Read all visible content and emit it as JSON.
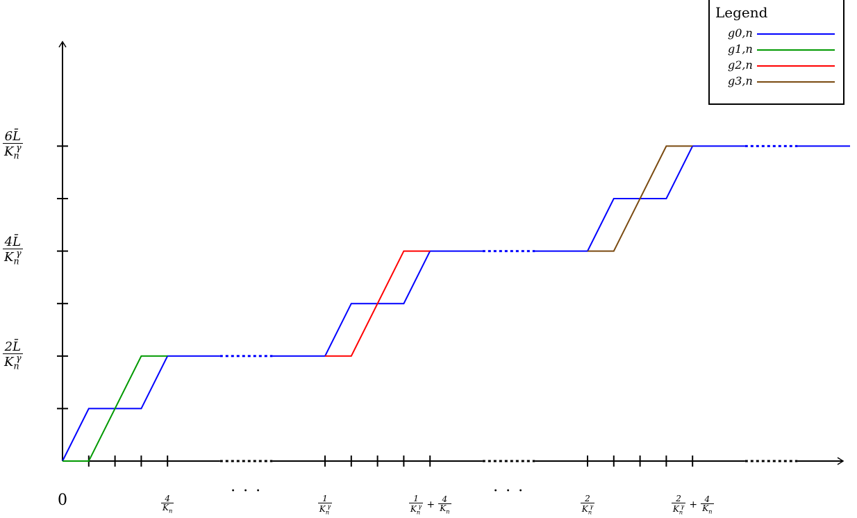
{
  "chart_data": {
    "type": "line",
    "title": "",
    "xlabel": "",
    "ylabel": "",
    "x_unit_note": "x in units of 1/K_n; 1/K_n^γ placed at x=10",
    "xlim": [
      0,
      30
    ],
    "ylim": [
      0,
      6
    ],
    "grid": false,
    "legend": {
      "title": "Legend",
      "placement": "top-right",
      "entries": [
        {
          "label": "g0,n",
          "color": "#0000ff"
        },
        {
          "label": "g1,n",
          "color": "#009900"
        },
        {
          "label": "g2,n",
          "color": "#ff0000"
        },
        {
          "label": "g3,n",
          "color": "#7a4a10"
        }
      ]
    },
    "y_ticks": [
      {
        "value": 1,
        "label": null
      },
      {
        "value": 2,
        "label": {
          "num": "2L̄",
          "den": "K_n^γ"
        }
      },
      {
        "value": 3,
        "label": null
      },
      {
        "value": 4,
        "label": {
          "num": "4L̄",
          "den": "K_n^γ"
        }
      },
      {
        "value": 5,
        "label": null
      },
      {
        "value": 6,
        "label": {
          "num": "6L̄",
          "den": "K_n^γ"
        }
      }
    ],
    "x_ticks": [
      1,
      2,
      3,
      4,
      10,
      11,
      12,
      13,
      14,
      20,
      21,
      22,
      23,
      24
    ],
    "x_labels": [
      {
        "x": 0,
        "kind": "plain",
        "text": "0"
      },
      {
        "x": 4,
        "kind": "frac",
        "num": "4",
        "den": "K_n"
      },
      {
        "x": 7,
        "kind": "dots",
        "text": "· · ·"
      },
      {
        "x": 10,
        "kind": "frac",
        "num": "1",
        "den": "K_n^γ"
      },
      {
        "x": 14,
        "kind": "sum",
        "a_num": "1",
        "a_den": "K_n^γ",
        "b_num": "4",
        "b_den": "K_n"
      },
      {
        "x": 17,
        "kind": "dots",
        "text": "· · ·"
      },
      {
        "x": 20,
        "kind": "frac",
        "num": "2",
        "den": "K_n^γ"
      },
      {
        "x": 24,
        "kind": "sum",
        "a_num": "2",
        "a_den": "K_n^γ",
        "b_num": "4",
        "b_den": "K_n"
      }
    ],
    "axis_gaps_dotted": [
      [
        6,
        8
      ],
      [
        16,
        18
      ],
      [
        26,
        28
      ]
    ],
    "series": [
      {
        "name": "g0,n",
        "color": "#0000ff",
        "segments": [
          {
            "points": [
              [
                0,
                0
              ],
              [
                1,
                1
              ],
              [
                3,
                1
              ],
              [
                4,
                2
              ],
              [
                6,
                2
              ]
            ]
          },
          {
            "points": [
              [
                6,
                2
              ],
              [
                8,
                2
              ]
            ],
            "dotted": true
          },
          {
            "points": [
              [
                8,
                2
              ],
              [
                10,
                2
              ],
              [
                11,
                3
              ],
              [
                13,
                3
              ],
              [
                14,
                4
              ],
              [
                16,
                4
              ]
            ]
          },
          {
            "points": [
              [
                16,
                4
              ],
              [
                18,
                4
              ]
            ],
            "dotted": true
          },
          {
            "points": [
              [
                18,
                4
              ],
              [
                20,
                4
              ],
              [
                21,
                5
              ],
              [
                23,
                5
              ],
              [
                24,
                6
              ],
              [
                26,
                6
              ]
            ]
          },
          {
            "points": [
              [
                26,
                6
              ],
              [
                28,
                6
              ]
            ],
            "dotted": true
          },
          {
            "points": [
              [
                28,
                6
              ],
              [
                30,
                6
              ]
            ]
          }
        ]
      },
      {
        "name": "g1,n",
        "color": "#009900",
        "segments": [
          {
            "points": [
              [
                0,
                0
              ],
              [
                1,
                0
              ],
              [
                3,
                2
              ],
              [
                4,
                2
              ]
            ]
          }
        ]
      },
      {
        "name": "g2,n",
        "color": "#ff0000",
        "segments": [
          {
            "points": [
              [
                10,
                2
              ],
              [
                11,
                2
              ],
              [
                13,
                4
              ],
              [
                14,
                4
              ]
            ]
          }
        ]
      },
      {
        "name": "g3,n",
        "color": "#7a4a10",
        "segments": [
          {
            "points": [
              [
                20,
                4
              ],
              [
                21,
                4
              ],
              [
                23,
                6
              ],
              [
                24,
                6
              ]
            ]
          }
        ]
      }
    ]
  }
}
